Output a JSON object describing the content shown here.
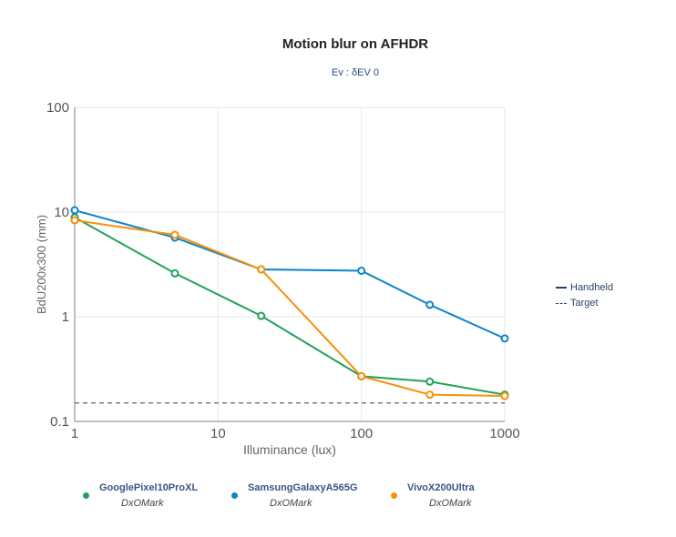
{
  "chart_data": {
    "type": "line",
    "title": "Motion blur on AFHDR",
    "subtitle": "Ev : δEV 0",
    "xlabel": "Illuminance (lux)",
    "ylabel": "BdU200x300 (mm)",
    "xscale": "log",
    "yscale": "log",
    "xlim": [
      1,
      1000
    ],
    "ylim": [
      0.1,
      100
    ],
    "xticks": [
      "1",
      "10",
      "100",
      "1000"
    ],
    "yticks": [
      "0.1",
      "1",
      "10",
      "100"
    ],
    "grid": true,
    "x": [
      1,
      5,
      20,
      100,
      300,
      1000
    ],
    "series": [
      {
        "name": "GooglePixel10ProXL",
        "source": "DxOMark",
        "color": "#22a05a",
        "values": [
          8.9,
          2.6,
          1.02,
          0.27,
          0.24,
          0.18
        ]
      },
      {
        "name": "SamsungGalaxyA565G",
        "source": "DxOMark",
        "color": "#0a84c6",
        "values": [
          10.4,
          5.7,
          2.83,
          2.75,
          1.3,
          0.62
        ]
      },
      {
        "name": "VivoX200Ultra",
        "source": "DxOMark",
        "color": "#f5900a",
        "values": [
          8.35,
          6.06,
          2.83,
          0.27,
          0.18,
          0.175
        ]
      }
    ],
    "target": 0.15,
    "line_legend": [
      {
        "label": "Handheld",
        "style": "solid"
      },
      {
        "label": "Target",
        "style": "dashed"
      }
    ],
    "legend_placement": "right and bottom"
  }
}
